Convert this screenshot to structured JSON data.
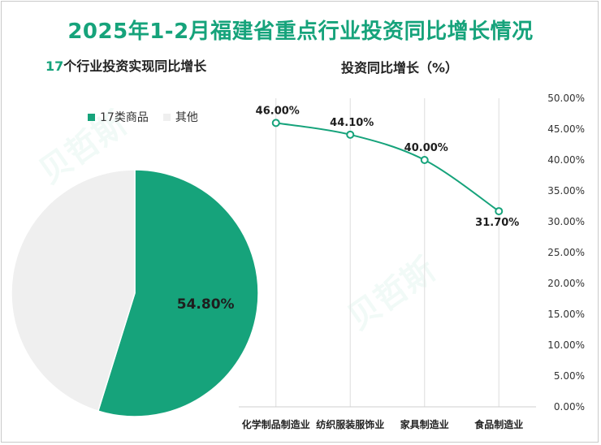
{
  "title": "2025年1-2月福建省重点行业投资同比增长情况",
  "left_subtitle": {
    "num": "17",
    "rest": "个行业投资实现同比增长"
  },
  "right_subtitle": "投资同比增长（%）",
  "colors": {
    "accent": "#16a37b",
    "other": "#efefef",
    "grid": "#d9d9d9",
    "text": "#222222"
  },
  "chart_data": [
    {
      "type": "pie",
      "slices": [
        {
          "name": "17类商品",
          "value": 54.8,
          "label": "54.80%",
          "color": "#16a37b"
        },
        {
          "name": "其他",
          "value": 45.2,
          "label": "",
          "color": "#efefef"
        }
      ]
    },
    {
      "type": "line",
      "categories": [
        "化学制品制造业",
        "纺织服装服饰业",
        "家具制造业",
        "食品制造业"
      ],
      "values": [
        46.0,
        44.1,
        40.0,
        31.7
      ],
      "value_labels": [
        "46.00%",
        "44.10%",
        "40.00%",
        "31.70%"
      ],
      "ylim": [
        0,
        50
      ],
      "yticks": [
        "0.00%",
        "5.00%",
        "10.00%",
        "15.00%",
        "20.00%",
        "25.00%",
        "30.00%",
        "35.00%",
        "40.00%",
        "45.00%",
        "50.00%"
      ],
      "y_axis_position": "right",
      "grid": "vertical"
    }
  ]
}
